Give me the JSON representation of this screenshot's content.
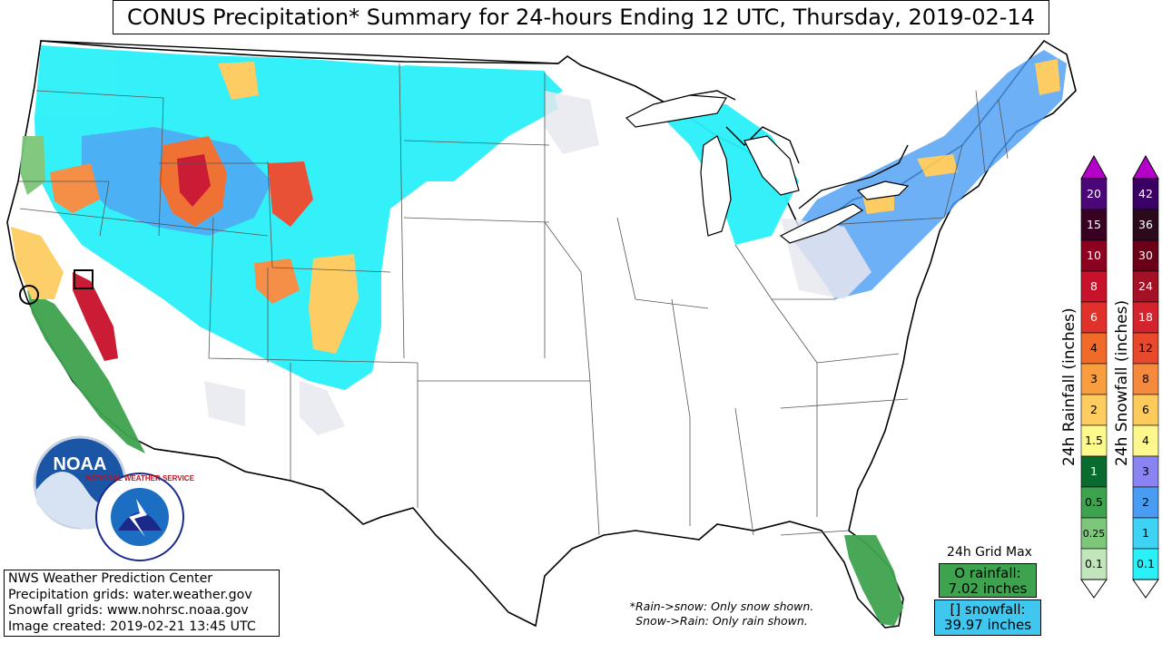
{
  "title": "CONUS Precipitation* Summary for 24-hours Ending 12 UTC, Thursday, 2019-02-14",
  "credits": {
    "line1": "NWS Weather Prediction Center",
    "line2": "Precipitation grids: water.weather.gov",
    "line3": "Snowfall grids: www.nohrsc.noaa.gov",
    "line4": "Image created: 2019-02-21 13:45 UTC"
  },
  "logos": {
    "noaa": "NOAA",
    "nws": "NATIONAL WEATHER SERVICE"
  },
  "grid_max": {
    "title": "24h Grid Max",
    "rain_line1": "O rainfall:",
    "rain_line2": "7.02 inches",
    "snow_line1": "[] snowfall:",
    "snow_line2": "39.97 inches",
    "rain_color": "#3ea34f",
    "snow_color": "#3fc7ef"
  },
  "note": {
    "line1": "*Rain->snow: Only snow shown.",
    "line2": "Snow->Rain: Only rain shown."
  },
  "rain_scale": {
    "title": "24h Rainfall (inches)",
    "levels": [
      {
        "label": "20",
        "color": "#4b0678"
      },
      {
        "label": "15",
        "color": "#380021"
      },
      {
        "label": "10",
        "color": "#8c0020"
      },
      {
        "label": "8",
        "color": "#c8112b"
      },
      {
        "label": "6",
        "color": "#e0312a"
      },
      {
        "label": "4",
        "color": "#f06a2a"
      },
      {
        "label": "3",
        "color": "#f89e3f"
      },
      {
        "label": "2",
        "color": "#fdcd60"
      },
      {
        "label": "1.5",
        "color": "#fcfa8c"
      },
      {
        "label": "1",
        "color": "#096b2e"
      },
      {
        "label": "0.5",
        "color": "#3ea34f"
      },
      {
        "label": "0.25",
        "color": "#7cc779"
      },
      {
        "label": "0.1",
        "color": "#c3e5bc"
      }
    ]
  },
  "snow_scale": {
    "title": "24h Snowfall (inches)",
    "levels": [
      {
        "label": "42",
        "color": "#3a0063"
      },
      {
        "label": "36",
        "color": "#2b0a1c"
      },
      {
        "label": "30",
        "color": "#6a0018"
      },
      {
        "label": "24",
        "color": "#a51124"
      },
      {
        "label": "18",
        "color": "#d3232d"
      },
      {
        "label": "12",
        "color": "#e8482c"
      },
      {
        "label": "8",
        "color": "#f58a3e"
      },
      {
        "label": "6",
        "color": "#fdcb5b"
      },
      {
        "label": "4",
        "color": "#fdf88d"
      },
      {
        "label": "3",
        "color": "#8a83f2"
      },
      {
        "label": "2",
        "color": "#4a9cf2"
      },
      {
        "label": "1",
        "color": "#3ed3f5"
      },
      {
        "label": "0.1",
        "color": "#2af0f8"
      }
    ]
  }
}
